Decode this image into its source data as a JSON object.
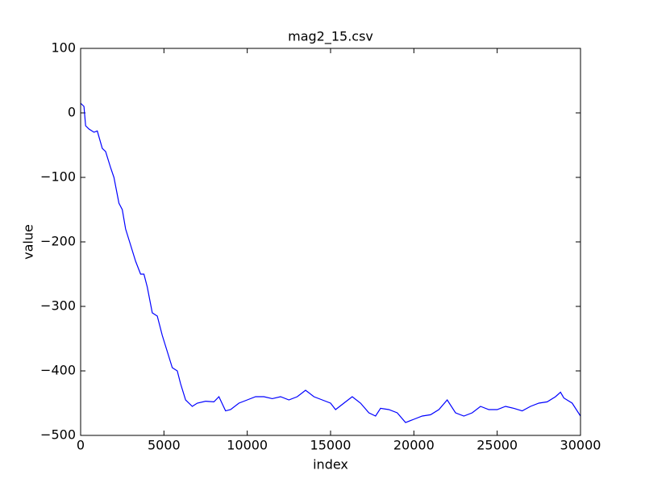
{
  "chart_data": {
    "type": "line",
    "title": "mag2_15.csv",
    "x_label": "index",
    "y_label": "value",
    "x": [
      0,
      200,
      300,
      500,
      800,
      1000,
      1300,
      1500,
      1800,
      2000,
      2300,
      2500,
      2700,
      3000,
      3300,
      3600,
      3800,
      4000,
      4300,
      4600,
      4900,
      5200,
      5500,
      5800,
      6000,
      6300,
      6700,
      7000,
      7500,
      8000,
      8300,
      8700,
      9000,
      9500,
      10000,
      10500,
      11000,
      11500,
      12000,
      12500,
      13000,
      13500,
      14000,
      14500,
      15000,
      15300,
      15800,
      16300,
      16800,
      17300,
      17700,
      18000,
      18500,
      19000,
      19500,
      20000,
      20500,
      21000,
      21500,
      22000,
      22500,
      23000,
      23500,
      24000,
      24500,
      25000,
      25500,
      26000,
      26500,
      27000,
      27500,
      28000,
      28500,
      28800,
      29000,
      29500,
      30000
    ],
    "series": [
      {
        "color": "#0000ff",
        "values": [
          15,
          10,
          -20,
          -25,
          -30,
          -28,
          -55,
          -60,
          -85,
          -100,
          -140,
          -150,
          -180,
          -205,
          -230,
          -250,
          -250,
          -270,
          -310,
          -315,
          -345,
          -370,
          -395,
          -400,
          -420,
          -445,
          -455,
          -450,
          -447,
          -448,
          -440,
          -462,
          -460,
          -450,
          -445,
          -440,
          -440,
          -443,
          -440,
          -445,
          -440,
          -430,
          -440,
          -445,
          -450,
          -460,
          -450,
          -440,
          -450,
          -465,
          -470,
          -458,
          -460,
          -465,
          -480,
          -475,
          -470,
          -468,
          -460,
          -445,
          -465,
          -470,
          -465,
          -455,
          -460,
          -460,
          -455,
          -458,
          -462,
          -455,
          -450,
          -448,
          -440,
          -433,
          -442,
          -450,
          -470
        ]
      }
    ],
    "xlim": [
      0,
      30000
    ],
    "ylim": [
      -500,
      100
    ],
    "xticks": [
      0,
      5000,
      10000,
      15000,
      20000,
      25000,
      30000
    ],
    "yticks": [
      {
        "value": -500,
        "label": "−500"
      },
      {
        "value": -400,
        "label": "−400"
      },
      {
        "value": -300,
        "label": "−300"
      },
      {
        "value": -200,
        "label": "−200"
      },
      {
        "value": -100,
        "label": "−100"
      },
      0,
      100
    ],
    "grid": false
  }
}
